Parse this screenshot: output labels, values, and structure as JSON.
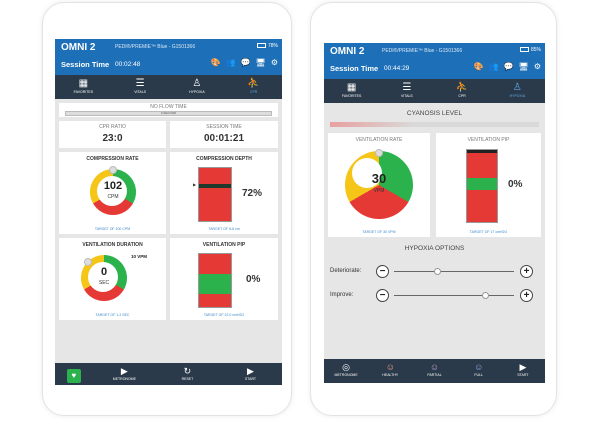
{
  "colors": {
    "brand": "#1d6fb8",
    "nav": "#2b3a4a",
    "green": "#2bb24c",
    "red": "#e53935",
    "yellow": "#f5c518",
    "accent": "#3a86c8"
  },
  "left": {
    "device": "OMNI 2",
    "patient": "PEDI®/PREMIE™ Blue - G1501366",
    "battery": "78%",
    "session_label": "Session Time",
    "session_time": "00:02:48",
    "tabs": [
      {
        "label": "FAVORITES",
        "icon": "grid-icon"
      },
      {
        "label": "VITALS",
        "icon": "sliders-icon"
      },
      {
        "label": "HYPOXIA",
        "icon": "hypoxia-figure-icon"
      },
      {
        "label": "CPR",
        "icon": "cpr-figure-icon",
        "active": true
      }
    ],
    "no_flow_label": "NO FLOW TIME",
    "no_flow_value": "0 SECOND",
    "cpr_ratio_label": "CPR RATIO",
    "cpr_ratio_value": "23:0",
    "session_time_label": "SESSION TIME",
    "session_time_value": "00:01:21",
    "compression_rate": {
      "title": "COMPRESSION RATE",
      "value": "102",
      "unit": "CPM",
      "target": "TARGET OF 100 CPM"
    },
    "compression_depth": {
      "title": "COMPRESSION DEPTH",
      "percent": "72%",
      "target": "TARGET OF 5-6 cm",
      "fill_fraction": 0.72
    },
    "ventilation_duration": {
      "title": "VENTILATION DURATION",
      "value": "0",
      "unit": "SEC",
      "badge": "10 VPM",
      "target": "TARGET OF 1-2 SEC"
    },
    "ventilation_pip": {
      "title": "VENTILATION PIP",
      "percent": "0%",
      "target": "TARGET OF 22.0 cmH2O",
      "fill_fraction": 0.0
    },
    "bottom": [
      {
        "label": "",
        "icon": "heart-logo-icon"
      },
      {
        "label": "METRONOME",
        "icon": "play-icon"
      },
      {
        "label": "RESET",
        "icon": "reset-icon"
      },
      {
        "label": "START",
        "icon": "play-icon"
      }
    ]
  },
  "right": {
    "device": "OMNI 2",
    "patient": "PEDI®/PREMIE™ Blue - G1501366",
    "battery": "85%",
    "session_label": "Session Time",
    "session_time": "00:44:29",
    "tabs": [
      {
        "label": "FAVORITES",
        "icon": "grid-icon"
      },
      {
        "label": "VITALS",
        "icon": "sliders-icon"
      },
      {
        "label": "CPR",
        "icon": "cpr-figure-icon"
      },
      {
        "label": "HYPOXIA",
        "icon": "hypoxia-figure-icon",
        "active": true
      }
    ],
    "cyanosis_label": "CYANOSIS LEVEL",
    "ventilation_rate": {
      "title": "VENTILATION RATE",
      "value": "30",
      "unit": "VPM",
      "target": "TARGET OF 30 VPM"
    },
    "ventilation_pip": {
      "title": "VENTILATION PIP",
      "percent": "0%",
      "target": "TARGET OF 17 cmH2O",
      "fill_fraction": 0.0
    },
    "hypoxia_options_label": "HYPOXIA OPTIONS",
    "deteriorate": {
      "label": "Deteriorate:",
      "level": 0.35
    },
    "improve": {
      "label": "Improve:",
      "level": 0.75
    },
    "bottom": [
      {
        "label": "METRONOME",
        "icon": "metronome-icon"
      },
      {
        "label": "HEALTHY",
        "icon": "baby-healthy-icon"
      },
      {
        "label": "PARTIAL",
        "icon": "baby-partial-icon"
      },
      {
        "label": "FULL",
        "icon": "baby-full-icon"
      },
      {
        "label": "START",
        "icon": "play-icon"
      }
    ]
  }
}
